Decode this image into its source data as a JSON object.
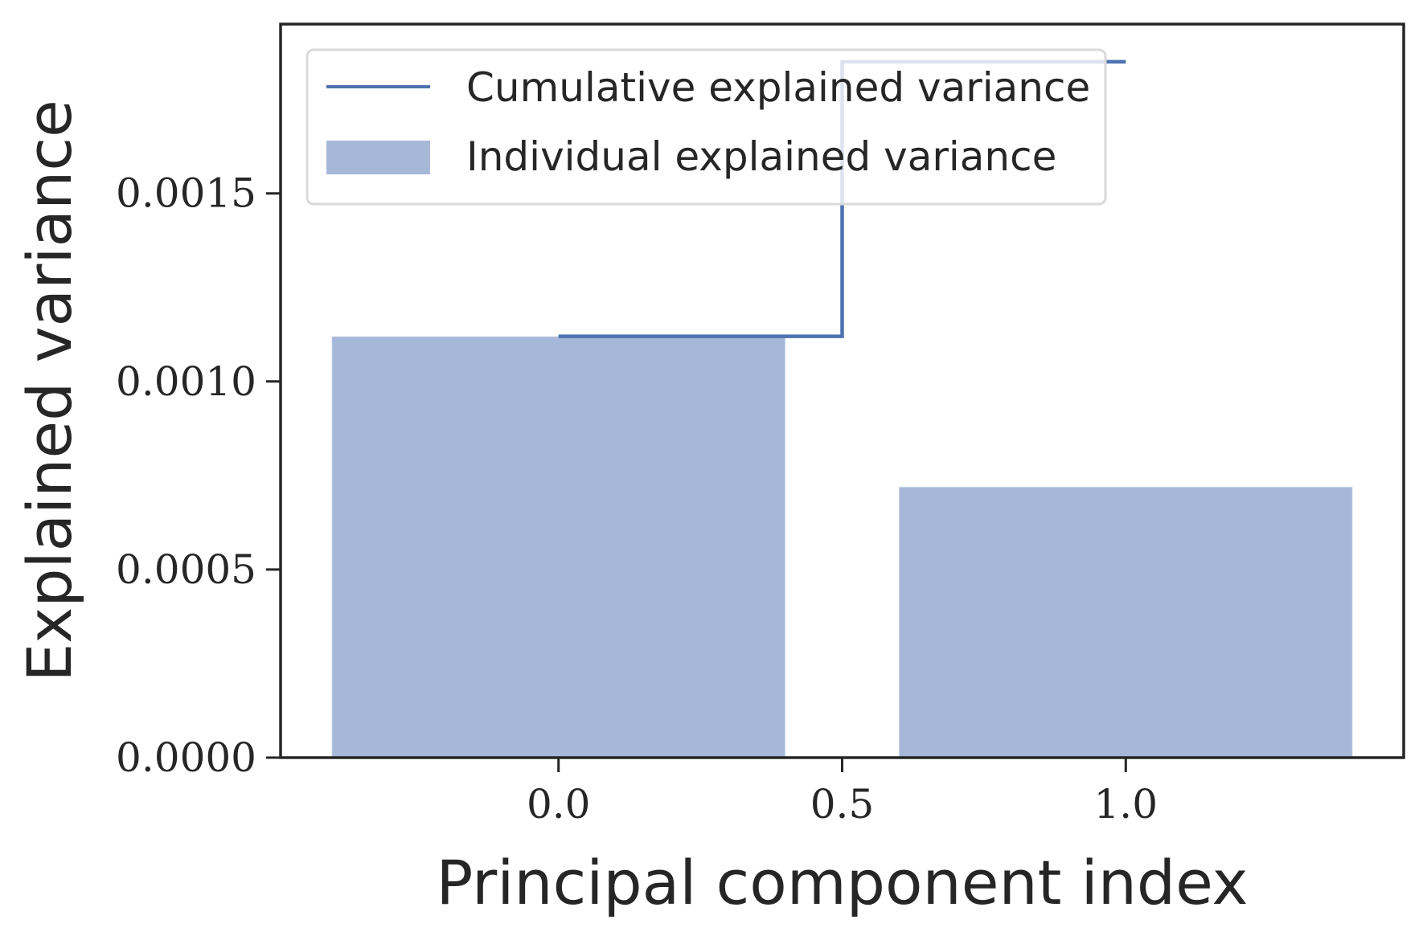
{
  "chart_data": {
    "type": "bar",
    "xlabel": "Principal component index",
    "ylabel": "Explained variance",
    "xlim": [
      -0.49,
      1.49
    ],
    "ylim": [
      0.0,
      0.00195
    ],
    "x_ticks": [
      {
        "value": 0.0,
        "label": "0.0"
      },
      {
        "value": 0.5,
        "label": "0.5"
      },
      {
        "value": 1.0,
        "label": "1.0"
      }
    ],
    "y_ticks": [
      {
        "value": 0.0,
        "label": "0.0000"
      },
      {
        "value": 0.0005,
        "label": "0.0005"
      },
      {
        "value": 0.001,
        "label": "0.0010"
      },
      {
        "value": 0.0015,
        "label": "0.0015"
      }
    ],
    "bar_width": 0.8,
    "series": [
      {
        "name": "Individual explained variance",
        "kind": "bar",
        "color": "#a6b8d8",
        "x": [
          0,
          1
        ],
        "values": [
          0.00112,
          0.00072
        ]
      },
      {
        "name": "Cumulative explained variance",
        "kind": "step",
        "where": "mid",
        "color": "#4c72b0",
        "x": [
          0,
          1
        ],
        "values": [
          0.00112,
          0.00185
        ]
      }
    ],
    "legend_position": "top-left",
    "grid": false
  }
}
